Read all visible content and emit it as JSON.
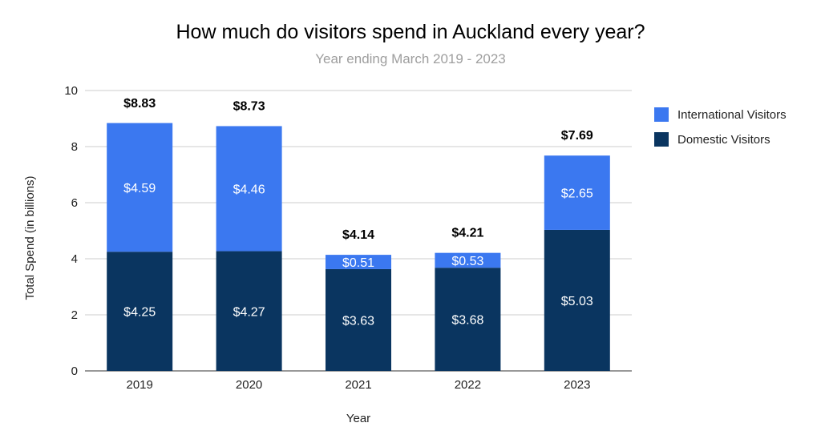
{
  "chart_data": {
    "type": "bar",
    "stacked": true,
    "title": "How much do visitors spend in Auckland every year?",
    "subtitle": "Year ending March 2019 - 2023",
    "xlabel": "Year",
    "ylabel": "Total Spend (in billions)",
    "ylim": [
      0,
      10
    ],
    "yticks": [
      0,
      2,
      4,
      6,
      8,
      10
    ],
    "grid": true,
    "legend_position": "right",
    "categories": [
      "2019",
      "2020",
      "2021",
      "2022",
      "2023"
    ],
    "series": [
      {
        "name": "Domestic Visitors",
        "color": "#0a3560",
        "values": [
          4.25,
          4.27,
          3.63,
          3.68,
          5.03
        ],
        "labels": [
          "$4.25",
          "$4.27",
          "$3.63",
          "$3.68",
          "$5.03"
        ]
      },
      {
        "name": "International Visitors",
        "color": "#3b78f0",
        "values": [
          4.59,
          4.46,
          0.51,
          0.53,
          2.65
        ],
        "labels": [
          "$4.59",
          "$4.46",
          "$0.51",
          "$0.53",
          "$2.65"
        ]
      }
    ],
    "totals": [
      8.83,
      8.73,
      4.14,
      4.21,
      7.69
    ],
    "total_labels": [
      "$8.83",
      "$8.73",
      "$4.14",
      "$4.21",
      "$7.69"
    ],
    "legend_order": [
      "International Visitors",
      "Domestic Visitors"
    ]
  }
}
